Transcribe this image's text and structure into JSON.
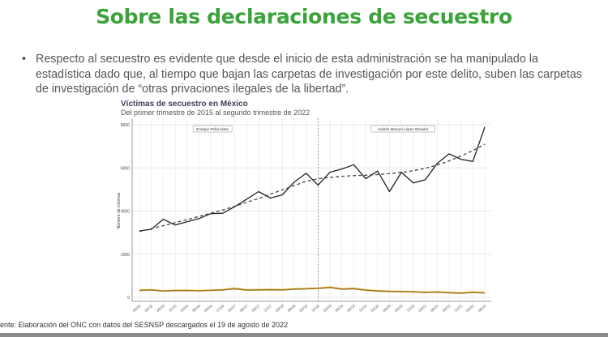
{
  "slide": {
    "title": "Sobre las declaraciones de secuestro",
    "bullet_marker": "•",
    "bullet_text": "Respecto al secuestro es evidente que desde el inicio de esta administración se ha manipulado la estadística dado que, al tiempo que bajan las carpetas de investigación por este delito, suben las carpetas de investigación de “otras privaciones ilegales de la libertad”.",
    "source": "ente: Elaboración del ONC con datos del SESNSP descargados el 19 de agosto de 2022"
  },
  "colors": {
    "title": "#3aa33a",
    "main_line": "#222222",
    "trend": "#444444",
    "yellow_line": "#f0c84a",
    "gold_line": "#a07820"
  },
  "chart_data": {
    "type": "line",
    "title": "Víctimas de secuestro en México",
    "subtitle": "Del primer trimestre de 2015 al segundo trimestre de 2022",
    "ylabel": "Número de víctimas",
    "xlabel": "",
    "ylim": [
      0,
      8000
    ],
    "yticks": [
      0,
      2000,
      4000,
      6000,
      8000
    ],
    "grid": true,
    "categories": [
      "03/15",
      "06/15",
      "09/15",
      "12/15",
      "03/16",
      "06/16",
      "09/16",
      "12/16",
      "03/17",
      "06/17",
      "09/17",
      "12/17",
      "03/18",
      "06/18",
      "09/18",
      "12/18",
      "03/19",
      "06/19",
      "09/19",
      "12/19",
      "03/20",
      "06/20",
      "09/20",
      "12/20",
      "03/21",
      "06/21",
      "09/21",
      "12/21",
      "03/22",
      "06/22"
    ],
    "annotations": [
      {
        "label": "Enrique Peña Nieto",
        "period": "03/15–09/18"
      },
      {
        "label": "Andrés Manuel López Obrador",
        "period": "12/18–06/22"
      }
    ],
    "divider_at": "12/18",
    "series": [
      {
        "values": [
          3080,
          3150,
          3620,
          3350,
          3500,
          3650,
          3880,
          3900,
          4200,
          4550,
          4900,
          4600,
          4750,
          5350,
          5750,
          5200,
          5800,
          5950,
          6150,
          5500,
          5850,
          4900,
          5800,
          5300,
          5450,
          6200,
          6650,
          6400,
          6300,
          7900
        ],
        "style": "solid",
        "color": "#222222"
      },
      {
        "values": [
          3050,
          3180,
          3320,
          3460,
          3600,
          3750,
          3900,
          4050,
          4220,
          4400,
          4580,
          4780,
          4980,
          5180,
          5380,
          5500,
          5560,
          5610,
          5640,
          5660,
          5690,
          5730,
          5790,
          5870,
          5980,
          6130,
          6320,
          6550,
          6800,
          7100
        ],
        "style": "dashed",
        "color": "#444444"
      },
      {
        "values": [
          340,
          360,
          300,
          330,
          330,
          320,
          340,
          360,
          430,
          350,
          360,
          370,
          360,
          400,
          410,
          430,
          490,
          400,
          420,
          350,
          310,
          290,
          280,
          270,
          240,
          260,
          230,
          210,
          250,
          220
        ],
        "style": "solid",
        "color": "#f0c84a"
      },
      {
        "values": [
          320,
          340,
          290,
          310,
          310,
          300,
          320,
          340,
          400,
          330,
          340,
          350,
          340,
          380,
          390,
          410,
          450,
          380,
          400,
          330,
          290,
          270,
          260,
          250,
          220,
          240,
          210,
          190,
          230,
          200
        ],
        "style": "solid",
        "color": "#a07820"
      }
    ]
  }
}
